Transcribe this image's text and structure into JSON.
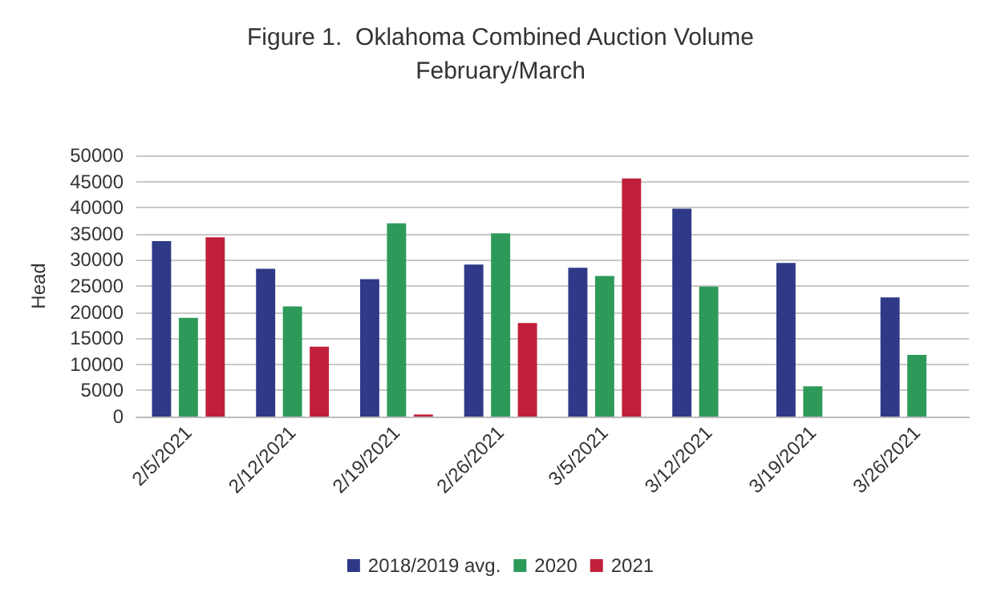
{
  "chart_data": {
    "type": "bar",
    "title": "Figure 1.  Oklahoma Combined Auction Volume\nFebruary/March",
    "ylabel": "Head",
    "categories": [
      "2/5/2021",
      "2/12/2021",
      "2/19/2021",
      "2/26/2021",
      "3/5/2021",
      "3/12/2021",
      "3/19/2021",
      "3/26/2021"
    ],
    "series": [
      {
        "name": "2018/2019 avg.",
        "color": "#2e3a87",
        "values": [
          33600,
          28300,
          26300,
          29100,
          28500,
          39800,
          29400,
          22800
        ]
      },
      {
        "name": "2020",
        "color": "#2e9a5a",
        "values": [
          18900,
          21100,
          37000,
          35100,
          26900,
          24900,
          5800,
          11800
        ]
      },
      {
        "name": "2021",
        "color": "#c0203a",
        "values": [
          34300,
          13400,
          400,
          17900,
          45600,
          null,
          null,
          null
        ]
      }
    ],
    "ylim": [
      0,
      50000
    ],
    "yticks": [
      0,
      5000,
      10000,
      15000,
      20000,
      25000,
      30000,
      35000,
      40000,
      45000,
      50000
    ],
    "grid": "y",
    "legend": "bottom"
  }
}
